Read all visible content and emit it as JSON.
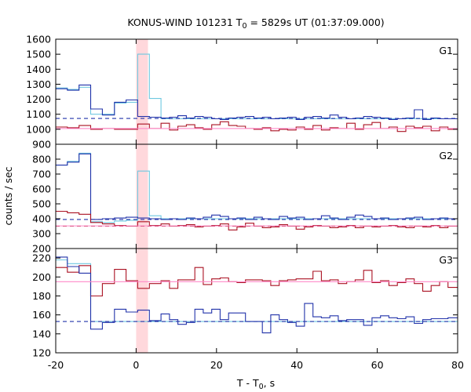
{
  "title": {
    "prefix": "KONUS-WIND 101231 T",
    "sub": "0",
    "suffix": " = 5829s UT (01:37:09.000)"
  },
  "xlabel": {
    "prefix": "T - T",
    "sub": "0",
    "suffix": ", s"
  },
  "ylabel": "counts / sec",
  "colors": {
    "cyan": "#6ec8e0",
    "blue": "#2233aa",
    "red": "#aa1122",
    "pink": "#ff88c8",
    "band": "#ffd8dc"
  },
  "chart_data": [
    {
      "type": "line",
      "panel": "G1",
      "xlim": [
        -20,
        80
      ],
      "ylim": [
        900,
        1600
      ],
      "x_ticks": [
        -20,
        0,
        20,
        40,
        60,
        80
      ],
      "y_ticks": [
        900,
        1000,
        1100,
        1200,
        1300,
        1400,
        1500,
        1600
      ],
      "highlight_band": [
        0,
        2.944
      ],
      "series": [
        {
          "color": "cyan",
          "style": "step",
          "edges": [
            -20,
            -17.1,
            -14.2,
            -11.3,
            -8.4,
            -5.4,
            -2.5,
            0.4,
            3.3,
            6.2,
            80
          ],
          "values": [
            1275,
            1265,
            1280,
            1100,
            1100,
            1175,
            1180,
            1500,
            1205,
            1070
          ]
        },
        {
          "color": "blue",
          "style": "step",
          "edges": [
            -20,
            -17.1,
            -14.2,
            -11.3,
            -8.4,
            -5.4,
            -2.5,
            0.4,
            3.3,
            6.2,
            8.3,
            10.4,
            12.5,
            14.6,
            16.7,
            18.8,
            20.9,
            23,
            25.1,
            27.2,
            29.3,
            31.4,
            33.5,
            35.6,
            37.7,
            39.8,
            41.9,
            44,
            46.1,
            48.2,
            50.3,
            52.4,
            54.5,
            56.6,
            58.7,
            60.8,
            62.9,
            65,
            67.1,
            69.2,
            71.3,
            73.4,
            75.5,
            77.6,
            80
          ],
          "values": [
            1270,
            1260,
            1295,
            1135,
            1095,
            1180,
            1195,
            1085,
            1080,
            1075,
            1080,
            1090,
            1075,
            1085,
            1080,
            1070,
            1065,
            1075,
            1080,
            1085,
            1075,
            1080,
            1070,
            1075,
            1080,
            1065,
            1080,
            1085,
            1075,
            1095,
            1080,
            1070,
            1075,
            1085,
            1080,
            1075,
            1065,
            1070,
            1075,
            1130,
            1065,
            1075,
            1070,
            1070
          ]
        },
        {
          "color": "red",
          "style": "step",
          "edges": [
            -20,
            -17.1,
            -14.2,
            -11.3,
            -8.4,
            -5.4,
            -2.5,
            0.4,
            3.3,
            6.2,
            8.3,
            10.4,
            12.5,
            14.6,
            16.7,
            18.8,
            20.9,
            23,
            25.1,
            27.2,
            29.3,
            31.4,
            33.5,
            35.6,
            37.7,
            39.8,
            41.9,
            44,
            46.1,
            48.2,
            50.3,
            52.4,
            54.5,
            56.6,
            58.7,
            60.8,
            62.9,
            65,
            67.1,
            69.2,
            71.3,
            73.4,
            75.5,
            77.6,
            80
          ],
          "values": [
            1015,
            1010,
            1025,
            1000,
            1005,
            1000,
            1000,
            1035,
            1005,
            1040,
            995,
            1020,
            1030,
            1010,
            1000,
            1030,
            1050,
            1025,
            1020,
            1005,
            1000,
            1010,
            990,
            1000,
            995,
            1015,
            1000,
            1025,
            995,
            1010,
            1005,
            1040,
            1000,
            1030,
            1045,
            1005,
            1015,
            985,
            1020,
            1010,
            1020,
            990,
            1015,
            1000
          ]
        },
        {
          "color": "blue",
          "style": "dashed-level",
          "x": [
            -20,
            80
          ],
          "value": 1072
        },
        {
          "color": "pink",
          "style": "level",
          "x": [
            -20,
            80
          ],
          "value": 1005
        }
      ]
    },
    {
      "type": "line",
      "panel": "G2",
      "xlim": [
        -20,
        80
      ],
      "ylim": [
        200,
        900
      ],
      "x_ticks": [
        -20,
        0,
        20,
        40,
        60,
        80
      ],
      "y_ticks": [
        200,
        300,
        400,
        500,
        600,
        700,
        800
      ],
      "highlight_band": [
        0,
        2.944
      ],
      "series": [
        {
          "color": "cyan",
          "style": "step",
          "edges": [
            -20,
            -17.1,
            -14.2,
            -11.3,
            -8.4,
            -5.4,
            -2.5,
            0.4,
            3.3,
            6.2,
            80
          ],
          "values": [
            760,
            785,
            840,
            380,
            375,
            385,
            390,
            720,
            420,
            400
          ]
        },
        {
          "color": "blue",
          "style": "step",
          "edges": [
            -20,
            -17.1,
            -14.2,
            -11.3,
            -8.4,
            -5.4,
            -2.5,
            0.4,
            3.3,
            6.2,
            8.3,
            10.4,
            12.5,
            14.6,
            16.7,
            18.8,
            20.9,
            23,
            25.1,
            27.2,
            29.3,
            31.4,
            33.5,
            35.6,
            37.7,
            39.8,
            41.9,
            44,
            46.1,
            48.2,
            50.3,
            52.4,
            54.5,
            56.6,
            58.7,
            60.8,
            62.9,
            65,
            67.1,
            69.2,
            71.3,
            73.4,
            75.5,
            77.6,
            80
          ],
          "values": [
            760,
            780,
            835,
            395,
            400,
            405,
            410,
            405,
            400,
            395,
            400,
            395,
            405,
            400,
            410,
            425,
            415,
            400,
            405,
            395,
            410,
            400,
            395,
            415,
            405,
            410,
            395,
            400,
            420,
            405,
            395,
            410,
            425,
            415,
            400,
            405,
            395,
            400,
            405,
            410,
            395,
            400,
            405,
            400
          ]
        },
        {
          "color": "red",
          "style": "step",
          "edges": [
            -20,
            -17.1,
            -14.2,
            -11.3,
            -8.4,
            -5.4,
            -2.5,
            0.4,
            3.3,
            6.2,
            8.3,
            10.4,
            12.5,
            14.6,
            16.7,
            18.8,
            20.9,
            23,
            25.1,
            27.2,
            29.3,
            31.4,
            33.5,
            35.6,
            37.7,
            39.8,
            41.9,
            44,
            46.1,
            48.2,
            50.3,
            52.4,
            54.5,
            56.6,
            58.7,
            60.8,
            62.9,
            65,
            67.1,
            69.2,
            71.3,
            73.4,
            75.5,
            77.6,
            80
          ],
          "values": [
            450,
            440,
            430,
            375,
            365,
            355,
            350,
            380,
            355,
            365,
            350,
            355,
            360,
            345,
            350,
            355,
            365,
            325,
            345,
            370,
            350,
            340,
            345,
            360,
            350,
            330,
            345,
            355,
            350,
            340,
            345,
            355,
            340,
            350,
            345,
            350,
            355,
            345,
            340,
            350,
            345,
            355,
            340,
            350
          ]
        },
        {
          "color": "blue",
          "style": "dashed-level",
          "x": [
            -20,
            80
          ],
          "value": 395
        },
        {
          "color": "red",
          "style": "dashed-level",
          "x": [
            -20,
            80
          ],
          "value": 350
        },
        {
          "color": "pink",
          "style": "level",
          "x": [
            -20,
            80
          ],
          "value": 352
        }
      ]
    },
    {
      "type": "line",
      "panel": "G3",
      "xlim": [
        -20,
        80
      ],
      "ylim": [
        120,
        230
      ],
      "x_ticks": [
        -20,
        0,
        20,
        40,
        60,
        80
      ],
      "y_ticks": [
        120,
        140,
        160,
        180,
        200,
        220
      ],
      "highlight_band": [
        0,
        2.944
      ],
      "series": [
        {
          "color": "cyan",
          "style": "step",
          "edges": [
            -20,
            -17.1,
            -14.2,
            -11.3,
            80
          ],
          "values": [
            218,
            214,
            214,
            153
          ]
        },
        {
          "color": "red",
          "style": "step",
          "edges": [
            -20,
            -17.1,
            -14.2,
            -11.3,
            -8.4,
            -5.4,
            -2.5,
            0.4,
            3.3,
            6.2,
            8.3,
            10.4,
            12.5,
            14.6,
            16.7,
            18.8,
            20.9,
            23,
            25.1,
            27.2,
            29.3,
            31.4,
            33.5,
            35.6,
            37.7,
            39.8,
            41.9,
            44,
            46.1,
            48.2,
            50.3,
            52.4,
            54.5,
            56.6,
            58.7,
            60.8,
            62.9,
            65,
            67.1,
            69.2,
            71.3,
            73.4,
            75.5,
            77.6,
            80
          ],
          "values": [
            210,
            205,
            212,
            180,
            193,
            208,
            196,
            188,
            193,
            196,
            188,
            197,
            197,
            210,
            192,
            198,
            199,
            195,
            194,
            197,
            197,
            196,
            191,
            196,
            197,
            198,
            198,
            206,
            196,
            197,
            193,
            195,
            197,
            207,
            194,
            196,
            191,
            194,
            198,
            193,
            185,
            191,
            195,
            189
          ]
        },
        {
          "color": "blue",
          "style": "step",
          "edges": [
            -20,
            -17.1,
            -14.2,
            -11.3,
            -8.4,
            -5.4,
            -2.5,
            0.4,
            3.3,
            6.2,
            8.3,
            10.4,
            12.5,
            14.6,
            16.7,
            18.8,
            20.9,
            23,
            25.1,
            27.2,
            29.3,
            31.4,
            33.5,
            35.6,
            37.7,
            39.8,
            41.9,
            44,
            46.1,
            48.2,
            50.3,
            52.4,
            54.5,
            56.6,
            58.7,
            60.8,
            62.9,
            65,
            67.1,
            69.2,
            71.3,
            73.4,
            75.5,
            77.6,
            80
          ],
          "values": [
            221,
            211,
            204,
            145,
            152,
            166,
            163,
            165,
            154,
            161,
            155,
            150,
            152,
            166,
            162,
            166,
            155,
            162,
            162,
            153,
            153,
            141,
            160,
            155,
            152,
            148,
            172,
            158,
            157,
            159,
            154,
            155,
            155,
            149,
            157,
            159,
            157,
            156,
            158,
            151,
            155,
            156,
            156,
            157
          ]
        },
        {
          "color": "blue",
          "style": "dashed-level",
          "x": [
            -20,
            80
          ],
          "value": 153
        },
        {
          "color": "pink",
          "style": "level",
          "x": [
            -20,
            80
          ],
          "value": 195
        }
      ]
    }
  ]
}
